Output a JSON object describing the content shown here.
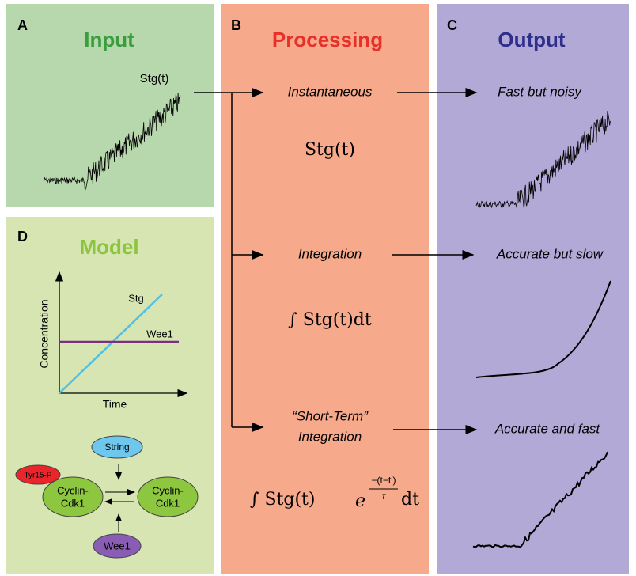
{
  "panels": {
    "a": {
      "letter": "A",
      "title": "Input",
      "signal_label": "Stg(t)"
    },
    "b": {
      "letter": "B",
      "title": "Processing",
      "rows": [
        {
          "label": "Instantaneous",
          "formula": "Stg(t)"
        },
        {
          "label": "Integration",
          "formula": "∫ Stg(t)dt"
        },
        {
          "label_lines": [
            "“Short-Term”",
            "Integration"
          ],
          "formula": {
            "integral": "∫ Stg(t)",
            "base": "e",
            "numerator": "−(t−t′)",
            "denominator": "τ",
            "tail": "dt"
          }
        }
      ]
    },
    "c": {
      "letter": "C",
      "title": "Output",
      "rows": [
        "Fast but noisy",
        "Accurate but slow",
        "Accurate and fast"
      ]
    },
    "d": {
      "letter": "D",
      "title": "Model",
      "y_axis": "Concentration",
      "x_axis": "Time",
      "lines": [
        "Stg",
        "Wee1"
      ],
      "nodes": {
        "string": "String",
        "tyr": "Tyr15-P",
        "cyclin_left": [
          "Cyclin-",
          "Cdk1"
        ],
        "cyclin_right": [
          "Cyclin-",
          "Cdk1"
        ],
        "wee1": "Wee1"
      }
    }
  }
}
